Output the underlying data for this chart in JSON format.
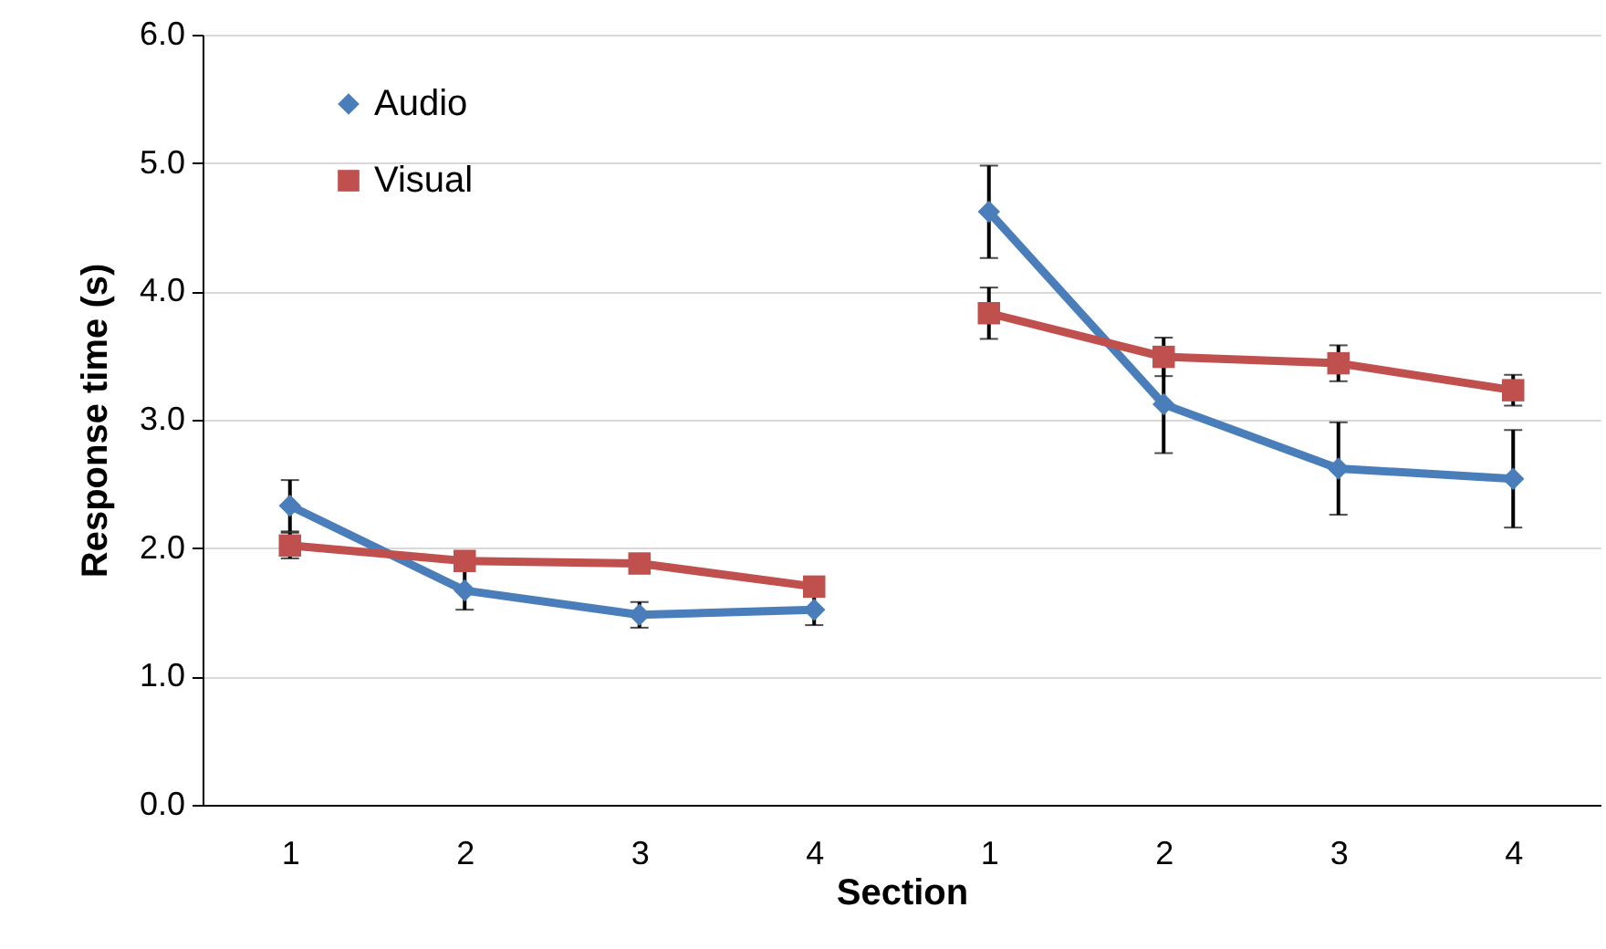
{
  "chart_data": {
    "type": "line",
    "xlabel": "Section",
    "ylabel": "Response time (s)",
    "categories": [
      "1",
      "2",
      "3",
      "4",
      "1",
      "2",
      "3",
      "4"
    ],
    "ylim": [
      0,
      6
    ],
    "yticks": [
      {
        "value": 0,
        "label": "0.0"
      },
      {
        "value": 1,
        "label": "1.0"
      },
      {
        "value": 2,
        "label": "2.0"
      },
      {
        "value": 3,
        "label": "3.0"
      },
      {
        "value": 4,
        "label": "4.0"
      },
      {
        "value": 5,
        "label": "5.0"
      },
      {
        "value": 6,
        "label": "6.0"
      }
    ],
    "grid": "y",
    "legend": "top left",
    "line_style": "solid",
    "series": [
      {
        "name": "Audio",
        "color": "#4a7ebb",
        "marker": "diamond",
        "values": [
          2.33,
          1.67,
          1.48,
          1.52,
          null,
          null,
          null,
          null
        ],
        "errors": [
          0.2,
          0.15,
          0.1,
          0.12,
          null,
          null,
          null,
          null
        ]
      },
      {
        "name": "Visual",
        "color": "#c0504d",
        "marker": "square",
        "values": [
          2.02,
          1.9,
          1.88,
          1.7,
          null,
          null,
          null,
          null
        ],
        "errors": [
          0.1,
          null,
          null,
          null,
          null,
          null,
          null,
          null
        ]
      },
      {
        "color": "#4a7ebb",
        "marker": "diamond",
        "values": [
          null,
          null,
          null,
          null,
          4.62,
          3.12,
          2.62,
          2.54
        ],
        "errors": [
          null,
          null,
          null,
          null,
          0.36,
          0.38,
          0.36,
          0.38
        ]
      },
      {
        "color": "#c0504d",
        "marker": "square",
        "values": [
          null,
          null,
          null,
          null,
          3.83,
          3.49,
          3.44,
          3.23
        ],
        "errors": [
          null,
          null,
          null,
          null,
          0.2,
          0.15,
          0.14,
          0.12
        ]
      }
    ]
  }
}
